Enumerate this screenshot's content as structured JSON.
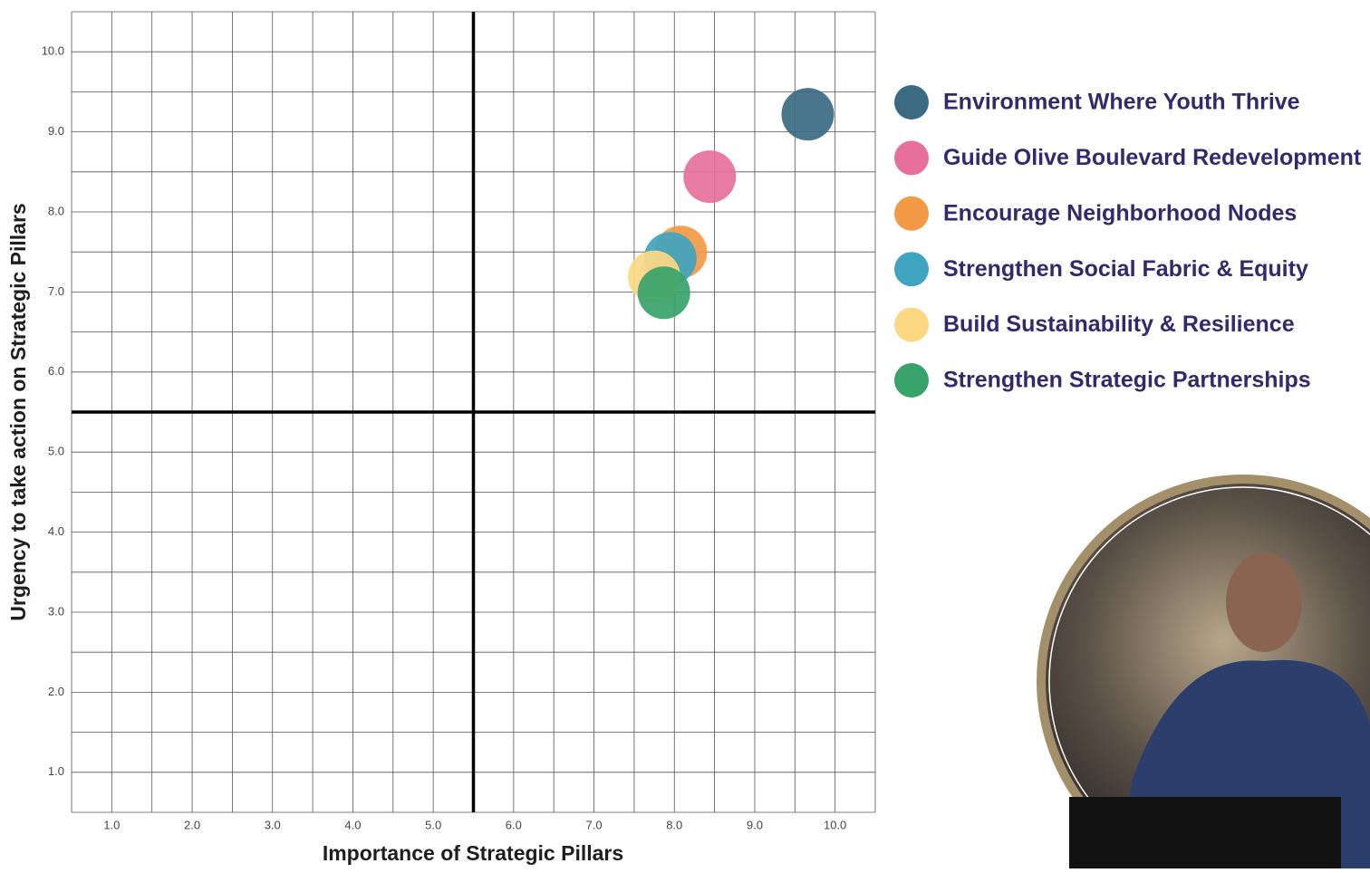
{
  "chart_data": {
    "type": "scatter",
    "x_label": "Importance of Strategic Pillars",
    "y_label": "Urgency to take action on Strategic Pillars",
    "xlim": [
      0.5,
      10.5
    ],
    "ylim": [
      0.5,
      10.5
    ],
    "xticks": [
      {
        "value": 1,
        "label": "1.0"
      },
      {
        "value": 2,
        "label": "2.0"
      },
      {
        "value": 3,
        "label": "3.0"
      },
      {
        "value": 4,
        "label": "4.0"
      },
      {
        "value": 5,
        "label": "5.0"
      },
      {
        "value": 6,
        "label": "6.0"
      },
      {
        "value": 7,
        "label": "7.0"
      },
      {
        "value": 8,
        "label": "8.0"
      },
      {
        "value": 9,
        "label": "9.0"
      },
      {
        "value": 10,
        "label": "10.0"
      }
    ],
    "yticks": [
      {
        "value": 1,
        "label": "1.0"
      },
      {
        "value": 2,
        "label": "2.0"
      },
      {
        "value": 3,
        "label": "3.0"
      },
      {
        "value": 4,
        "label": "4.0"
      },
      {
        "value": 5,
        "label": "5.0"
      },
      {
        "value": 6,
        "label": "6.0"
      },
      {
        "value": 7,
        "label": "7.0"
      },
      {
        "value": 8,
        "label": "8.0"
      },
      {
        "value": 9,
        "label": "9.0"
      },
      {
        "value": 10,
        "label": "10.0"
      }
    ],
    "xgrid": [
      0.5,
      1,
      1.5,
      2,
      2.5,
      3,
      3.5,
      4,
      4.5,
      5,
      5.5,
      6,
      6.5,
      7,
      7.5,
      8,
      8.5,
      9,
      9.5,
      10,
      10.5
    ],
    "ygrid": [
      0.5,
      1,
      1.5,
      2,
      2.5,
      3,
      3.5,
      4,
      4.5,
      5,
      5.5,
      6,
      6.5,
      7,
      7.5,
      8,
      8.5,
      9,
      9.5,
      10,
      10.5
    ],
    "quadrant_lines": {
      "x": 5.5,
      "y": 5.5
    },
    "legend": "right",
    "series": [
      {
        "name": "Environment Where Youth Thrive",
        "color": "#3b6a83",
        "x": [
          9.66
        ],
        "y": [
          9.22
        ]
      },
      {
        "name": "Guide Olive Boulevard Redevelopment",
        "color": "#e6709a",
        "x": [
          8.44
        ],
        "y": [
          8.44
        ]
      },
      {
        "name": "Encourage Neighborhood Nodes",
        "color": "#f29a46",
        "x": [
          8.08
        ],
        "y": [
          7.5
        ]
      },
      {
        "name": "Strengthen Social Fabric & Equity",
        "color": "#3ea4bf",
        "x": [
          7.95
        ],
        "y": [
          7.42
        ]
      },
      {
        "name": "Build Sustainability & Resilience",
        "color": "#fdd883",
        "x": [
          7.75
        ],
        "y": [
          7.19
        ]
      },
      {
        "name": "Strengthen Strategic Partnerships",
        "color": "#37a36a",
        "x": [
          7.87
        ],
        "y": [
          6.99
        ]
      }
    ]
  }
}
